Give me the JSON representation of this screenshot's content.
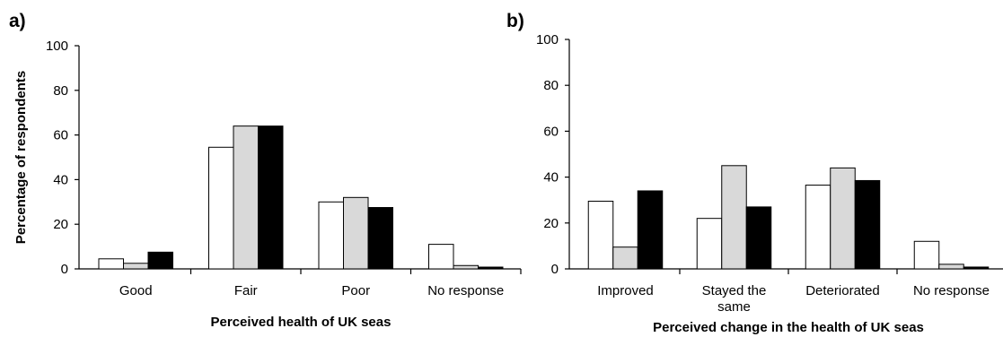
{
  "colors": {
    "series_1": "#ffffff",
    "series_2": "#d9d9d9",
    "series_3": "#000000"
  },
  "chart_data": [
    {
      "type": "bar",
      "panel_label": "a)",
      "title": "",
      "xlabel": "Perceived health of UK seas",
      "ylabel": "Percentage of respondents",
      "ylim": [
        0,
        100
      ],
      "yticks": [
        "0",
        "20",
        "40",
        "60",
        "80",
        "100"
      ],
      "categories": [
        [
          "Good"
        ],
        [
          "Fair"
        ],
        [
          "Poor"
        ],
        [
          "No response"
        ]
      ],
      "series": [
        {
          "values": [
            4.5,
            54.5,
            30,
            11
          ]
        },
        {
          "values": [
            2.5,
            64,
            32,
            1.5
          ]
        },
        {
          "values": [
            7.5,
            64,
            27.5,
            0.8
          ]
        }
      ],
      "legend": "none",
      "grid": false
    },
    {
      "type": "bar",
      "panel_label": "b)",
      "title": "",
      "xlabel": "Perceived change in the health of UK seas",
      "ylabel": "",
      "ylim": [
        0,
        100
      ],
      "yticks": [
        "0",
        "20",
        "40",
        "60",
        "80",
        "100"
      ],
      "categories": [
        [
          "Improved"
        ],
        [
          "Stayed the",
          "same"
        ],
        [
          "Deteriorated"
        ],
        [
          "No response"
        ]
      ],
      "series": [
        {
          "values": [
            29.5,
            22,
            36.5,
            12
          ]
        },
        {
          "values": [
            9.5,
            45,
            44,
            2
          ]
        },
        {
          "values": [
            34,
            27,
            38.5,
            0.8
          ]
        }
      ],
      "legend": "none",
      "grid": false
    }
  ]
}
